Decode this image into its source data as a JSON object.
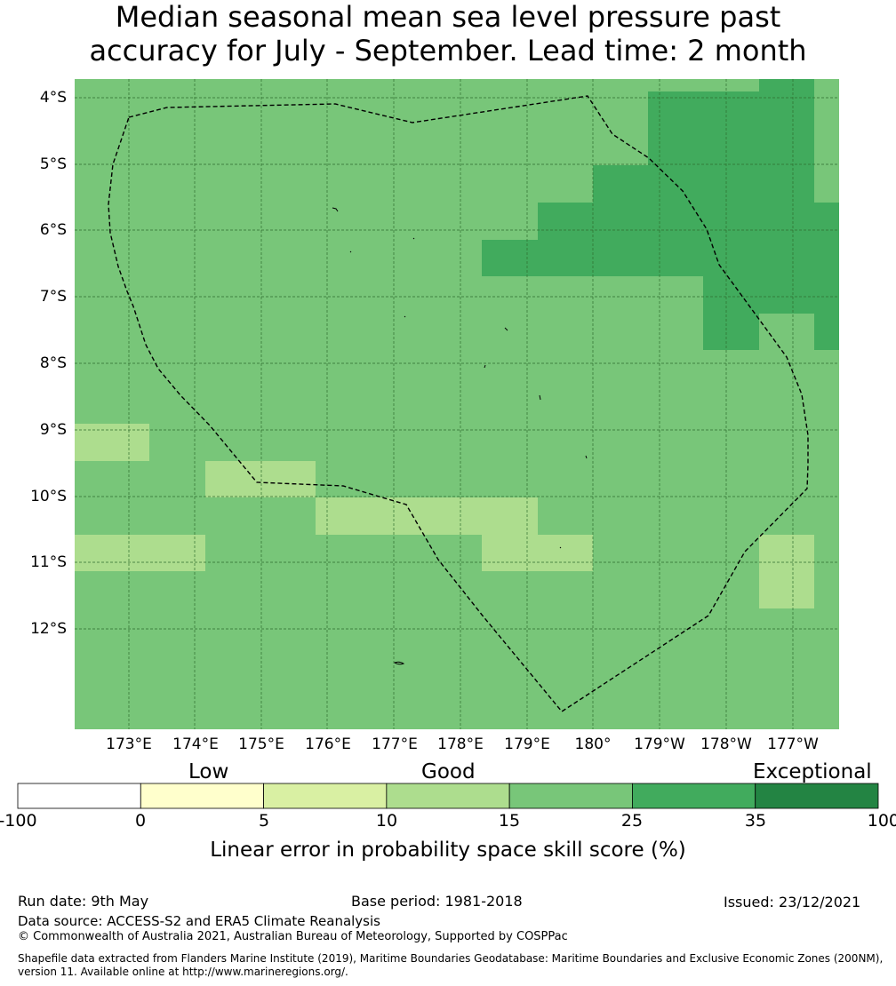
{
  "title": {
    "line1": "Median seasonal mean sea level pressure past",
    "line2": "accuracy for July - September. Lead time: 2 month"
  },
  "map": {
    "lat_labels": [
      "4°S",
      "5°S",
      "6°S",
      "7°S",
      "8°S",
      "9°S",
      "10°S",
      "11°S",
      "12°S"
    ],
    "lon_labels": [
      "173°E",
      "174°E",
      "175°E",
      "176°E",
      "177°E",
      "178°E",
      "179°E",
      "180°",
      "179°W",
      "178°W",
      "177°W"
    ],
    "colors": {
      "c10_15": "#addd8e",
      "c15_25": "#78c679",
      "c25_35": "#41ab5d",
      "boundary": "#000000"
    }
  },
  "colorbar": {
    "categories": [
      "Low",
      "Good",
      "Exceptional"
    ],
    "ticks": [
      "-100",
      "0",
      "5",
      "10",
      "15",
      "25",
      "35",
      "100"
    ],
    "colors": [
      "#ffffff",
      "#ffffcc",
      "#d9f0a3",
      "#addd8e",
      "#78c679",
      "#41ab5d",
      "#238443"
    ],
    "label": "Linear error in probability space skill score (%)"
  },
  "footer": {
    "run_date": "Run date: 9th May",
    "base_period": "Base period: 1981-2018",
    "issued": "Issued: 23/12/2021",
    "data_source": "Data source: ACCESS-S2 and ERA5 Climate Reanalysis",
    "copyright": "© Commonwealth of Australia 2021, Australian Bureau of Meteorology, Supported by COSPPac",
    "shapefile_line1": "Shapefile data extracted from Flanders Marine Institute (2019), Maritime Boundaries Geodatabase: Maritime Boundaries and Exclusive Economic Zones (200NM),",
    "shapefile_line2": "version 11. Available online at http://www.marineregions.org/."
  }
}
